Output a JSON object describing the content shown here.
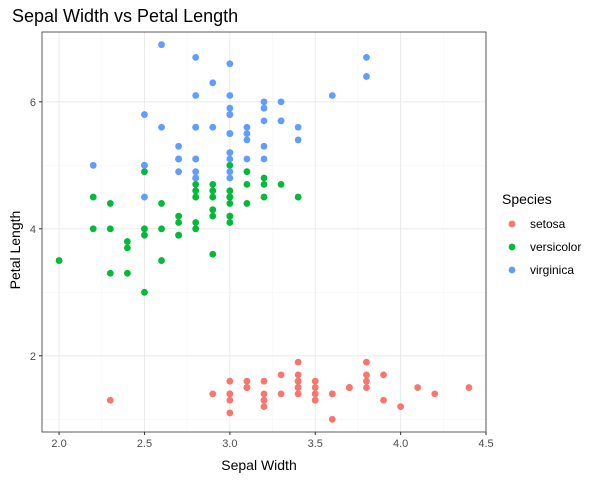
{
  "chart_data": {
    "type": "scatter",
    "title": "Sepal Width vs Petal Length",
    "xlabel": "Sepal Width",
    "ylabel": "Petal Length",
    "xlim": [
      1.9,
      4.5
    ],
    "ylim": [
      0.8,
      7.1
    ],
    "x_ticks": [
      "2.0",
      "2.5",
      "3.0",
      "3.5",
      "4.0",
      "4.5"
    ],
    "y_ticks": [
      "2",
      "4",
      "6"
    ],
    "grid": true,
    "legend": {
      "title": "Species",
      "position": "right"
    },
    "series": [
      {
        "name": "setosa",
        "color": "#F8766D",
        "points": [
          [
            3.5,
            1.4
          ],
          [
            3.0,
            1.4
          ],
          [
            3.2,
            1.3
          ],
          [
            3.1,
            1.5
          ],
          [
            3.6,
            1.4
          ],
          [
            3.9,
            1.7
          ],
          [
            3.4,
            1.4
          ],
          [
            3.4,
            1.5
          ],
          [
            2.9,
            1.4
          ],
          [
            3.1,
            1.5
          ],
          [
            3.7,
            1.5
          ],
          [
            3.4,
            1.6
          ],
          [
            3.0,
            1.4
          ],
          [
            3.0,
            1.1
          ],
          [
            4.0,
            1.2
          ],
          [
            4.4,
            1.5
          ],
          [
            3.9,
            1.3
          ],
          [
            3.5,
            1.4
          ],
          [
            3.8,
            1.7
          ],
          [
            3.8,
            1.5
          ],
          [
            3.4,
            1.7
          ],
          [
            3.7,
            1.5
          ],
          [
            3.6,
            1.0
          ],
          [
            3.3,
            1.7
          ],
          [
            3.4,
            1.9
          ],
          [
            3.0,
            1.6
          ],
          [
            3.4,
            1.6
          ],
          [
            3.5,
            1.5
          ],
          [
            3.4,
            1.4
          ],
          [
            3.2,
            1.6
          ],
          [
            3.1,
            1.6
          ],
          [
            3.4,
            1.5
          ],
          [
            4.1,
            1.5
          ],
          [
            4.2,
            1.4
          ],
          [
            3.1,
            1.5
          ],
          [
            3.2,
            1.2
          ],
          [
            3.5,
            1.3
          ],
          [
            3.6,
            1.4
          ],
          [
            3.0,
            1.3
          ],
          [
            3.4,
            1.5
          ],
          [
            3.5,
            1.3
          ],
          [
            2.3,
            1.3
          ],
          [
            3.2,
            1.3
          ],
          [
            3.5,
            1.6
          ],
          [
            3.8,
            1.9
          ],
          [
            3.0,
            1.4
          ],
          [
            3.8,
            1.6
          ],
          [
            3.2,
            1.4
          ],
          [
            3.7,
            1.5
          ],
          [
            3.3,
            1.4
          ]
        ]
      },
      {
        "name": "versicolor",
        "color": "#00BA38",
        "points": [
          [
            3.2,
            4.7
          ],
          [
            3.2,
            4.5
          ],
          [
            3.1,
            4.9
          ],
          [
            2.3,
            4.0
          ],
          [
            2.8,
            4.6
          ],
          [
            2.8,
            4.5
          ],
          [
            3.3,
            4.7
          ],
          [
            2.4,
            3.3
          ],
          [
            2.9,
            4.6
          ],
          [
            2.7,
            3.9
          ],
          [
            2.0,
            3.5
          ],
          [
            3.0,
            4.2
          ],
          [
            2.2,
            4.0
          ],
          [
            2.9,
            4.7
          ],
          [
            2.9,
            3.6
          ],
          [
            3.1,
            4.4
          ],
          [
            3.0,
            4.5
          ],
          [
            2.7,
            4.1
          ],
          [
            2.2,
            4.5
          ],
          [
            2.5,
            3.9
          ],
          [
            3.2,
            4.8
          ],
          [
            2.8,
            4.0
          ],
          [
            2.5,
            4.9
          ],
          [
            2.8,
            4.7
          ],
          [
            2.9,
            4.3
          ],
          [
            3.0,
            4.4
          ],
          [
            2.8,
            4.8
          ],
          [
            3.0,
            5.0
          ],
          [
            2.9,
            4.5
          ],
          [
            2.6,
            3.5
          ],
          [
            2.4,
            3.8
          ],
          [
            2.4,
            3.7
          ],
          [
            2.7,
            3.9
          ],
          [
            2.7,
            5.1
          ],
          [
            3.0,
            4.5
          ],
          [
            3.4,
            4.5
          ],
          [
            3.1,
            4.7
          ],
          [
            2.3,
            4.4
          ],
          [
            3.0,
            4.1
          ],
          [
            2.5,
            4.0
          ],
          [
            2.6,
            4.4
          ],
          [
            3.0,
            4.6
          ],
          [
            2.6,
            4.0
          ],
          [
            2.3,
            3.3
          ],
          [
            2.7,
            4.2
          ],
          [
            3.0,
            4.2
          ],
          [
            2.9,
            4.2
          ],
          [
            2.9,
            4.3
          ],
          [
            2.5,
            3.0
          ],
          [
            2.8,
            4.1
          ]
        ]
      },
      {
        "name": "virginica",
        "color": "#619CFF",
        "points": [
          [
            3.3,
            6.0
          ],
          [
            2.7,
            5.1
          ],
          [
            3.0,
            5.9
          ],
          [
            2.9,
            5.6
          ],
          [
            3.0,
            5.8
          ],
          [
            3.0,
            6.6
          ],
          [
            2.5,
            4.5
          ],
          [
            2.9,
            6.3
          ],
          [
            2.5,
            5.8
          ],
          [
            3.6,
            6.1
          ],
          [
            3.2,
            5.1
          ],
          [
            2.7,
            5.3
          ],
          [
            3.0,
            5.5
          ],
          [
            2.5,
            5.0
          ],
          [
            2.8,
            5.1
          ],
          [
            3.2,
            5.3
          ],
          [
            3.0,
            5.5
          ],
          [
            3.8,
            6.7
          ],
          [
            2.6,
            6.9
          ],
          [
            2.2,
            5.0
          ],
          [
            3.2,
            5.7
          ],
          [
            2.8,
            4.9
          ],
          [
            2.8,
            6.7
          ],
          [
            2.7,
            4.9
          ],
          [
            3.3,
            5.7
          ],
          [
            3.2,
            6.0
          ],
          [
            2.8,
            4.8
          ],
          [
            3.0,
            4.9
          ],
          [
            2.8,
            5.6
          ],
          [
            3.0,
            5.8
          ],
          [
            2.8,
            6.1
          ],
          [
            3.8,
            6.4
          ],
          [
            2.8,
            5.6
          ],
          [
            2.8,
            5.1
          ],
          [
            2.6,
            5.6
          ],
          [
            3.0,
            6.1
          ],
          [
            3.4,
            5.6
          ],
          [
            3.1,
            5.5
          ],
          [
            3.0,
            4.8
          ],
          [
            3.1,
            5.4
          ],
          [
            3.1,
            5.6
          ],
          [
            3.1,
            5.1
          ],
          [
            2.7,
            5.1
          ],
          [
            3.2,
            5.9
          ],
          [
            3.3,
            5.7
          ],
          [
            3.0,
            5.2
          ],
          [
            2.5,
            5.0
          ],
          [
            3.0,
            5.2
          ],
          [
            3.4,
            5.4
          ],
          [
            3.0,
            5.1
          ]
        ]
      }
    ]
  }
}
